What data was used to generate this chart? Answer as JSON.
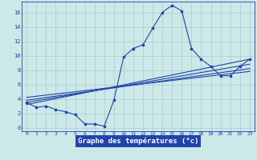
{
  "xlabel": "Graphe des températures (°c)",
  "bg_color": "#cce8e8",
  "line_color": "#2244aa",
  "grid_color": "#aacccc",
  "label_bg_color": "#2244aa",
  "label_text_color": "#ffffff",
  "tick_color": "#2244aa",
  "xlim": [
    -0.5,
    23.5
  ],
  "ylim": [
    -0.5,
    17.5
  ],
  "xticks": [
    0,
    1,
    2,
    3,
    4,
    5,
    6,
    7,
    8,
    9,
    10,
    11,
    12,
    13,
    14,
    15,
    16,
    17,
    18,
    19,
    20,
    21,
    22,
    23
  ],
  "yticks": [
    0,
    2,
    4,
    6,
    8,
    10,
    12,
    14,
    16
  ],
  "main_x": [
    0,
    1,
    2,
    3,
    4,
    5,
    6,
    7,
    8,
    9,
    10,
    11,
    12,
    13,
    14,
    15,
    16,
    17,
    18,
    19,
    20,
    21,
    22,
    23
  ],
  "main_y": [
    3.5,
    2.8,
    3.0,
    2.5,
    2.2,
    1.8,
    0.5,
    0.5,
    0.2,
    3.8,
    9.8,
    11.0,
    11.5,
    13.8,
    16.0,
    17.0,
    16.2,
    11.0,
    9.5,
    8.5,
    7.2,
    7.2,
    8.5,
    9.5
  ],
  "line2_x": [
    0,
    23
  ],
  "line2_y": [
    3.2,
    9.5
  ],
  "line3_x": [
    0,
    23
  ],
  "line3_y": [
    3.5,
    8.8
  ],
  "line4_x": [
    0,
    23
  ],
  "line4_y": [
    3.8,
    8.2
  ],
  "line5_x": [
    0,
    23
  ],
  "line5_y": [
    4.2,
    7.8
  ]
}
